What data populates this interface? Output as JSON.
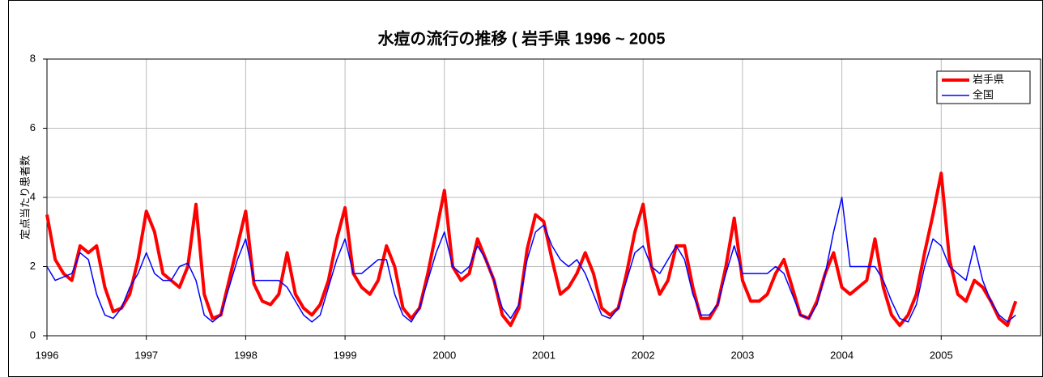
{
  "chart_data": {
    "type": "line",
    "title": "水痘の流行の推移 ( 岩手県 1996 ~ 2005",
    "y_label": "定点当たり患者数",
    "x": [
      1996,
      1996.083,
      1996.167,
      1996.25,
      1996.333,
      1996.417,
      1996.5,
      1996.583,
      1996.667,
      1996.75,
      1996.833,
      1996.917,
      1997,
      1997.083,
      1997.167,
      1997.25,
      1997.333,
      1997.417,
      1997.5,
      1997.583,
      1997.667,
      1997.75,
      1997.833,
      1997.917,
      1998,
      1998.083,
      1998.167,
      1998.25,
      1998.333,
      1998.417,
      1998.5,
      1998.583,
      1998.667,
      1998.75,
      1998.833,
      1998.917,
      1999,
      1999.083,
      1999.167,
      1999.25,
      1999.333,
      1999.417,
      1999.5,
      1999.583,
      1999.667,
      1999.75,
      1999.833,
      1999.917,
      2000,
      2000.083,
      2000.167,
      2000.25,
      2000.333,
      2000.417,
      2000.5,
      2000.583,
      2000.667,
      2000.75,
      2000.833,
      2000.917,
      2001,
      2001.083,
      2001.167,
      2001.25,
      2001.333,
      2001.417,
      2001.5,
      2001.583,
      2001.667,
      2001.75,
      2001.833,
      2001.917,
      2002,
      2002.083,
      2002.167,
      2002.25,
      2002.333,
      2002.417,
      2002.5,
      2002.583,
      2002.667,
      2002.75,
      2002.833,
      2002.917,
      2003,
      2003.083,
      2003.167,
      2003.25,
      2003.333,
      2003.417,
      2003.5,
      2003.583,
      2003.667,
      2003.75,
      2003.833,
      2003.917,
      2004,
      2004.083,
      2004.167,
      2004.25,
      2004.333,
      2004.417,
      2004.5,
      2004.583,
      2004.667,
      2004.75,
      2004.833,
      2004.917,
      2005,
      2005.083,
      2005.167,
      2005.25,
      2005.333,
      2005.417,
      2005.5,
      2005.583,
      2005.667,
      2005.75
    ],
    "series": [
      {
        "name": "岩手県",
        "color": "#ff0000",
        "values": [
          3.5,
          2.2,
          1.8,
          1.6,
          2.6,
          2.4,
          2.6,
          1.4,
          0.7,
          0.8,
          1.2,
          2.2,
          3.6,
          3.0,
          1.8,
          1.6,
          1.4,
          2.0,
          3.8,
          1.2,
          0.5,
          0.6,
          1.6,
          2.6,
          3.6,
          1.5,
          1.0,
          0.9,
          1.2,
          2.4,
          1.2,
          0.8,
          0.6,
          0.9,
          1.6,
          2.8,
          3.7,
          1.8,
          1.4,
          1.2,
          1.6,
          2.6,
          2.0,
          0.8,
          0.5,
          0.8,
          1.8,
          3.0,
          4.2,
          2.0,
          1.6,
          1.8,
          2.8,
          2.2,
          1.6,
          0.6,
          0.3,
          0.8,
          2.5,
          3.5,
          3.3,
          2.2,
          1.2,
          1.4,
          1.8,
          2.4,
          1.8,
          0.8,
          0.6,
          0.8,
          1.8,
          3.0,
          3.8,
          2.0,
          1.2,
          1.6,
          2.6,
          2.6,
          1.4,
          0.5,
          0.5,
          0.9,
          2.0,
          3.4,
          1.6,
          1.0,
          1.0,
          1.2,
          1.8,
          2.2,
          1.4,
          0.6,
          0.5,
          1.0,
          1.8,
          2.4,
          1.4,
          1.2,
          1.4,
          1.6,
          2.8,
          1.4,
          0.6,
          0.3,
          0.6,
          1.2,
          2.4,
          3.5,
          4.7,
          2.2,
          1.2,
          1.0,
          1.6,
          1.4,
          1.0,
          0.5,
          0.3,
          1.0
        ]
      },
      {
        "name": "全国",
        "color": "#0000ff",
        "values": [
          2.0,
          1.6,
          1.7,
          1.8,
          2.4,
          2.2,
          1.2,
          0.6,
          0.5,
          0.8,
          1.4,
          1.8,
          2.4,
          1.8,
          1.6,
          1.6,
          2.0,
          2.1,
          1.6,
          0.6,
          0.4,
          0.6,
          1.4,
          2.2,
          2.8,
          1.6,
          1.6,
          1.6,
          1.6,
          1.4,
          1.0,
          0.6,
          0.4,
          0.6,
          1.4,
          2.2,
          2.8,
          1.8,
          1.8,
          2.0,
          2.2,
          2.2,
          1.2,
          0.6,
          0.4,
          0.8,
          1.6,
          2.4,
          3.0,
          2.0,
          1.8,
          2.0,
          2.6,
          2.2,
          1.6,
          0.8,
          0.5,
          0.9,
          2.2,
          3.0,
          3.2,
          2.6,
          2.2,
          2.0,
          2.2,
          1.8,
          1.2,
          0.6,
          0.5,
          0.8,
          1.6,
          2.4,
          2.6,
          2.0,
          1.8,
          2.2,
          2.6,
          2.2,
          1.2,
          0.6,
          0.6,
          0.9,
          1.8,
          2.6,
          1.8,
          1.8,
          1.8,
          1.8,
          2.0,
          1.8,
          1.2,
          0.6,
          0.5,
          0.9,
          1.8,
          3.0,
          4.0,
          2.0,
          2.0,
          2.0,
          2.0,
          1.6,
          1.0,
          0.5,
          0.4,
          0.9,
          2.0,
          2.8,
          2.6,
          2.0,
          1.8,
          1.6,
          2.6,
          1.6,
          1.0,
          0.6,
          0.4,
          0.6
        ]
      }
    ],
    "xlim": [
      1996,
      2006
    ],
    "xticks": [
      1996,
      1997,
      1998,
      1999,
      2000,
      2001,
      2002,
      2003,
      2004,
      2005
    ],
    "ylim": [
      0,
      8
    ],
    "yticks": [
      0,
      2,
      4,
      6,
      8
    ],
    "grid": true,
    "legend": "upper right"
  }
}
